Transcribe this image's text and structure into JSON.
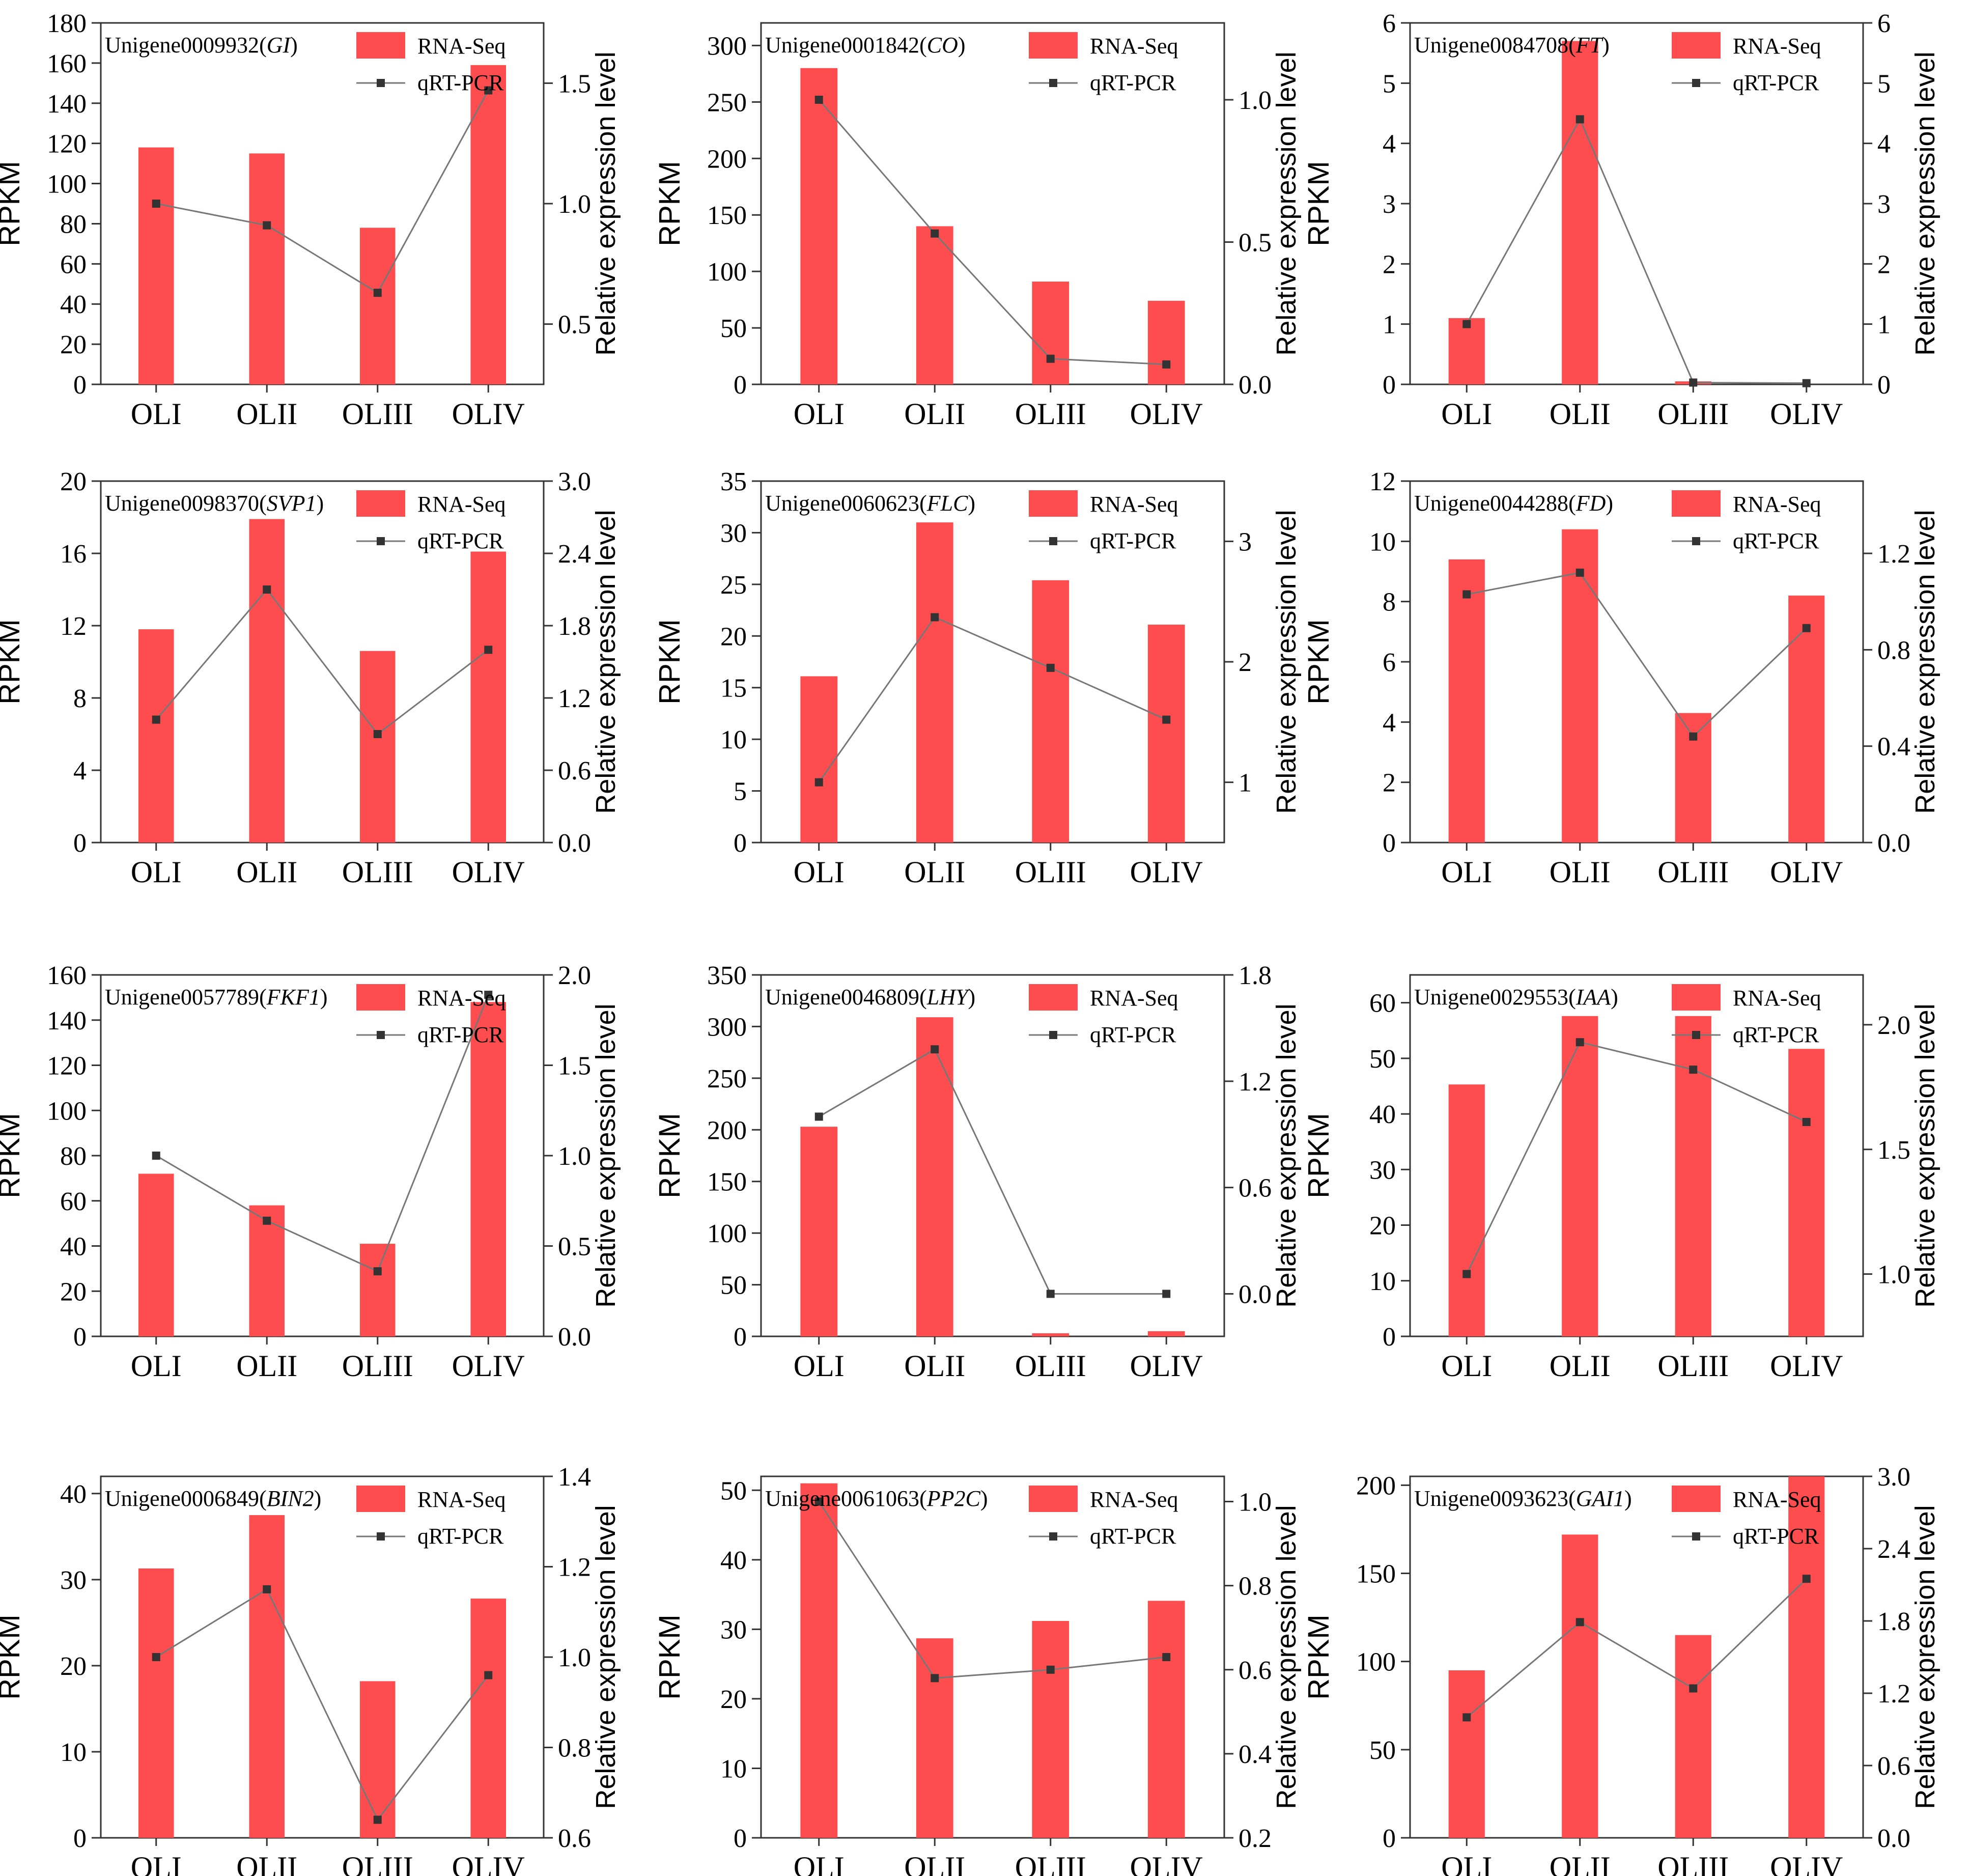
{
  "legend_labels": {
    "bar": "RNA-Seq",
    "line": "qRT-PCR"
  },
  "colors": {
    "bar": "#ff4d4f",
    "line": "#777777",
    "marker": "#333333",
    "axis": "#333333"
  },
  "chart_data": [
    {
      "type": "bar",
      "gene": "GI",
      "id": "Unigene0009932",
      "categories": [
        "OLI",
        "OLII",
        "OLIII",
        "OLIV"
      ],
      "series": [
        {
          "name": "RNA-Seq",
          "values": [
            118,
            115,
            78,
            159
          ]
        },
        {
          "name": "qRT-PCR",
          "values": [
            1.0,
            0.91,
            0.63,
            1.47
          ]
        }
      ],
      "ylabel": "RPKM",
      "y2label": "Relative expression level",
      "ylim": [
        0,
        180
      ],
      "y2lim": [
        0.25,
        1.75
      ],
      "yticks": [
        "0",
        "20",
        "40",
        "60",
        "80",
        "100",
        "120",
        "140",
        "160",
        "180"
      ],
      "y2ticks": [
        "0.5",
        "1.0",
        "1.5"
      ]
    },
    {
      "type": "bar",
      "gene": "CO",
      "id": "Unigene0001842",
      "categories": [
        "OLI",
        "OLII",
        "OLIII",
        "OLIV"
      ],
      "series": [
        {
          "name": "RNA-Seq",
          "values": [
            280,
            140,
            91,
            74
          ]
        },
        {
          "name": "qRT-PCR",
          "values": [
            1.0,
            0.53,
            0.09,
            0.07
          ]
        }
      ],
      "ylabel": "RPKM",
      "y2label": "Relative expression level",
      "ylim": [
        0,
        320
      ],
      "y2lim": [
        0,
        1.27
      ],
      "yticks": [
        "0",
        "50",
        "100",
        "150",
        "200",
        "250",
        "300"
      ],
      "y2ticks": [
        "0.0",
        "0.5",
        "1.0"
      ]
    },
    {
      "type": "bar",
      "gene": "FT",
      "id": "Unigene0084708",
      "categories": [
        "OLI",
        "OLII",
        "OLIII",
        "OLIV"
      ],
      "series": [
        {
          "name": "RNA-Seq",
          "values": [
            1.1,
            5.7,
            0.05,
            0.0
          ]
        },
        {
          "name": "qRT-PCR",
          "values": [
            1.0,
            4.4,
            0.03,
            0.02
          ]
        }
      ],
      "ylabel": "RPKM",
      "y2label": "Relative expression level",
      "ylim": [
        0,
        6.0
      ],
      "y2lim": [
        0,
        6.0
      ],
      "yticks": [
        "0",
        "1",
        "2",
        "3",
        "4",
        "5",
        "6"
      ],
      "y2ticks": [
        "0",
        "1",
        "2",
        "3",
        "4",
        "5",
        "6"
      ]
    },
    {
      "type": "bar",
      "gene": "SVP1",
      "id": "Unigene0098370",
      "categories": [
        "OLI",
        "OLII",
        "OLIII",
        "OLIV"
      ],
      "series": [
        {
          "name": "RNA-Seq",
          "values": [
            11.8,
            17.9,
            10.6,
            16.1
          ]
        },
        {
          "name": "qRT-PCR",
          "values": [
            1.02,
            2.1,
            0.9,
            1.6
          ]
        }
      ],
      "ylabel": "RPKM",
      "y2label": "Relative expression level",
      "ylim": [
        0,
        20
      ],
      "y2lim": [
        0,
        3.0
      ],
      "yticks": [
        "0",
        "4",
        "8",
        "12",
        "16",
        "20"
      ],
      "y2ticks": [
        "0.0",
        "0.6",
        "1.2",
        "1.8",
        "2.4",
        "3.0"
      ]
    },
    {
      "type": "bar",
      "gene": "FLC",
      "id": "Unigene0060623",
      "categories": [
        "OLI",
        "OLII",
        "OLIII",
        "OLIV"
      ],
      "series": [
        {
          "name": "RNA-Seq",
          "values": [
            16.1,
            31.0,
            25.4,
            21.1
          ]
        },
        {
          "name": "qRT-PCR",
          "values": [
            1.0,
            2.37,
            1.95,
            1.52
          ]
        }
      ],
      "ylabel": "RPKM",
      "y2label": "Relative expression level",
      "ylim": [
        0,
        35
      ],
      "y2lim": [
        0.5,
        3.5
      ],
      "yticks": [
        "0",
        "5",
        "10",
        "15",
        "20",
        "25",
        "30",
        "35"
      ],
      "y2ticks": [
        "1",
        "2",
        "3"
      ]
    },
    {
      "type": "bar",
      "gene": "FD",
      "id": "Unigene0044288",
      "categories": [
        "OLI",
        "OLII",
        "OLIII",
        "OLIV"
      ],
      "series": [
        {
          "name": "RNA-Seq",
          "values": [
            9.4,
            10.4,
            4.3,
            8.2
          ]
        },
        {
          "name": "qRT-PCR",
          "values": [
            1.03,
            1.12,
            0.44,
            0.89
          ]
        }
      ],
      "ylabel": "RPKM",
      "y2label": "Relative expression level",
      "ylim": [
        0,
        12
      ],
      "y2lim": [
        0,
        1.5
      ],
      "yticks": [
        "0",
        "2",
        "4",
        "6",
        "8",
        "10",
        "12"
      ],
      "y2ticks": [
        "0.0",
        "0.4",
        "0.8",
        "1.2"
      ]
    },
    {
      "type": "bar",
      "gene": "FKF1",
      "id": "Unigene0057789",
      "categories": [
        "OLI",
        "OLII",
        "OLIII",
        "OLIV"
      ],
      "series": [
        {
          "name": "RNA-Seq",
          "values": [
            72,
            58,
            41,
            148
          ]
        },
        {
          "name": "qRT-PCR",
          "values": [
            1.0,
            0.64,
            0.36,
            1.89
          ]
        }
      ],
      "ylabel": "RPKM",
      "y2label": "Relative expression level",
      "ylim": [
        0,
        160
      ],
      "y2lim": [
        0,
        2.0
      ],
      "yticks": [
        "0",
        "20",
        "40",
        "60",
        "80",
        "100",
        "120",
        "140",
        "160"
      ],
      "y2ticks": [
        "0.0",
        "0.5",
        "1.0",
        "1.5",
        "2.0"
      ]
    },
    {
      "type": "bar",
      "gene": "LHY",
      "id": "Unigene0046809",
      "categories": [
        "OLI",
        "OLII",
        "OLIII",
        "OLIV"
      ],
      "series": [
        {
          "name": "RNA-Seq",
          "values": [
            203,
            309,
            3,
            5
          ]
        },
        {
          "name": "qRT-PCR",
          "values": [
            1.0,
            1.38,
            0.0,
            0.0
          ]
        }
      ],
      "ylabel": "RPKM",
      "y2label": "Relative expression level",
      "ylim": [
        0,
        350
      ],
      "y2lim": [
        -0.24,
        1.8
      ],
      "yticks": [
        "0",
        "50",
        "100",
        "150",
        "200",
        "250",
        "300",
        "350"
      ],
      "y2ticks": [
        "0.0",
        "0.6",
        "1.2",
        "1.8"
      ]
    },
    {
      "type": "bar",
      "gene": "IAA",
      "id": "Unigene0029553",
      "categories": [
        "OLI",
        "OLII",
        "OLIII",
        "OLIV"
      ],
      "series": [
        {
          "name": "RNA-Seq",
          "values": [
            45.3,
            57.6,
            57.6,
            51.7
          ]
        },
        {
          "name": "qRT-PCR",
          "values": [
            1.0,
            1.93,
            1.82,
            1.61
          ]
        }
      ],
      "ylabel": "RPKM",
      "y2label": "Relative expression level",
      "ylim": [
        0,
        65
      ],
      "y2lim": [
        0.75,
        2.2
      ],
      "yticks": [
        "0",
        "10",
        "20",
        "30",
        "40",
        "50",
        "60"
      ],
      "y2ticks": [
        "1.0",
        "1.5",
        "2.0"
      ]
    },
    {
      "type": "bar",
      "gene": "BIN2",
      "id": "Unigene0006849",
      "categories": [
        "OLI",
        "OLII",
        "OLIII",
        "OLIV"
      ],
      "series": [
        {
          "name": "RNA-Seq",
          "values": [
            31.3,
            37.5,
            18.2,
            27.8
          ]
        },
        {
          "name": "qRT-PCR",
          "values": [
            1.0,
            1.15,
            0.64,
            0.96
          ]
        }
      ],
      "ylabel": "RPKM",
      "y2label": "Relative expression level",
      "ylim": [
        0,
        42
      ],
      "y2lim": [
        0.6,
        1.4
      ],
      "yticks": [
        "0",
        "10",
        "20",
        "30",
        "40"
      ],
      "y2ticks": [
        "0.6",
        "0.8",
        "1.0",
        "1.2",
        "1.4"
      ]
    },
    {
      "type": "bar",
      "gene": "PP2C",
      "id": "Unigene0061063",
      "categories": [
        "OLI",
        "OLII",
        "OLIII",
        "OLIV"
      ],
      "series": [
        {
          "name": "RNA-Seq",
          "values": [
            51,
            28.7,
            31.2,
            34.1
          ]
        },
        {
          "name": "qRT-PCR",
          "values": [
            1.0,
            0.58,
            0.6,
            0.63
          ]
        }
      ],
      "ylabel": "RPKM",
      "y2label": "Relative expression level",
      "ylim": [
        0,
        52
      ],
      "y2lim": [
        0.2,
        1.06
      ],
      "yticks": [
        "0",
        "10",
        "20",
        "30",
        "40",
        "50"
      ],
      "y2ticks": [
        "0.2",
        "0.4",
        "0.6",
        "0.8",
        "1.0"
      ]
    },
    {
      "type": "bar",
      "gene": "GAI1",
      "id": "Unigene0093623",
      "categories": [
        "OLI",
        "OLII",
        "OLIII",
        "OLIV"
      ],
      "series": [
        {
          "name": "RNA-Seq",
          "values": [
            95,
            172,
            115,
            205
          ]
        },
        {
          "name": "qRT-PCR",
          "values": [
            1.0,
            1.79,
            1.24,
            2.15
          ]
        }
      ],
      "ylabel": "RPKM",
      "y2label": "Relative expression level",
      "ylim": [
        0,
        205
      ],
      "y2lim": [
        0,
        3.0
      ],
      "yticks": [
        "0",
        "50",
        "100",
        "150",
        "200"
      ],
      "y2ticks": [
        "0.0",
        "0.6",
        "1.2",
        "1.8",
        "2.4",
        "3.0"
      ]
    }
  ]
}
